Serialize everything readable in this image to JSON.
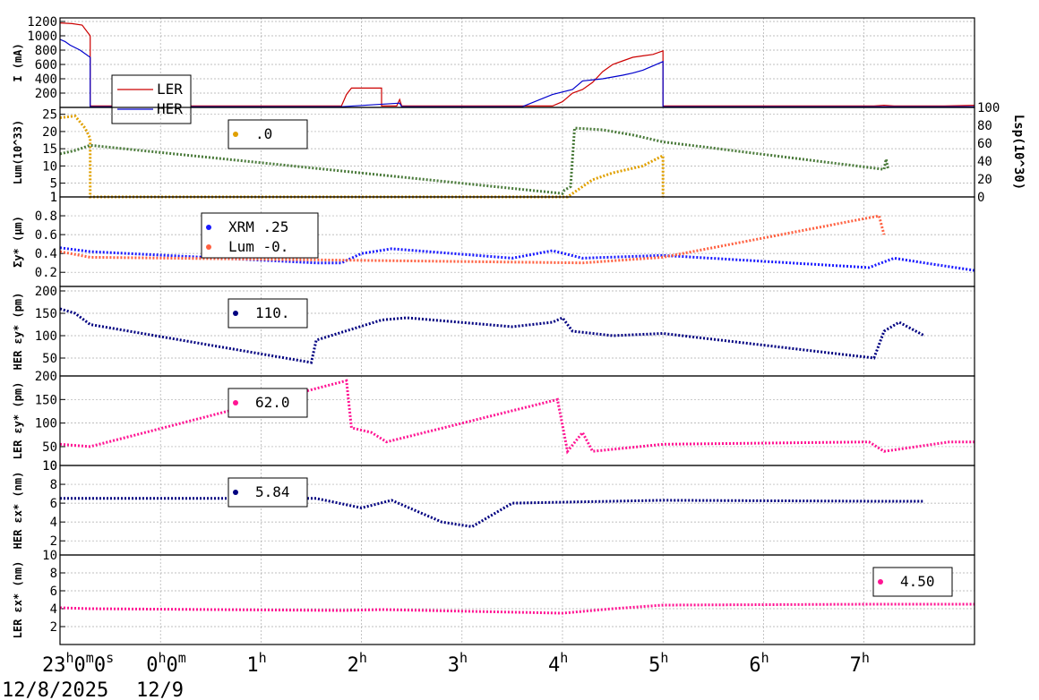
{
  "chart_data": {
    "type": "line",
    "x_axis": {
      "ticks": [
        {
          "t": 0,
          "major": "23",
          "sup1": "h",
          "mid1": "0",
          "sup2": "m",
          "mid2": "0",
          "sup3": "s"
        },
        {
          "t": 1,
          "major": "0",
          "sup1": "h",
          "mid1": "0",
          "sup2": "m"
        },
        {
          "t": 2,
          "major": "1",
          "sup1": "h"
        },
        {
          "t": 3,
          "major": "2",
          "sup1": "h"
        },
        {
          "t": 4,
          "major": "3",
          "sup1": "h"
        },
        {
          "t": 5,
          "major": "4",
          "sup1": "h"
        },
        {
          "t": 6,
          "major": "5",
          "sup1": "h"
        },
        {
          "t": 7,
          "major": "6",
          "sup1": "h"
        },
        {
          "t": 8,
          "major": "7",
          "sup1": "h"
        }
      ],
      "date_labels": [
        "12/8/2025",
        "12/9"
      ],
      "range_hours": [
        0,
        9.1
      ]
    },
    "panels": [
      {
        "id": "current",
        "ylabel": "I (mA)",
        "yticks": [
          "200",
          "400",
          "600",
          "800",
          "1000",
          "1200"
        ],
        "ylim": [
          0,
          1250
        ],
        "legend": [
          {
            "label": "LER",
            "color": "#cc0000"
          },
          {
            "label": "HER",
            "color": "#0000cc"
          }
        ],
        "series": [
          {
            "name": "LER",
            "color": "#cc0000",
            "points": [
              [
                0,
                1180
              ],
              [
                0.12,
                1170
              ],
              [
                0.22,
                1150
              ],
              [
                0.3,
                1000
              ],
              [
                0.3,
                20
              ],
              [
                2.8,
                20
              ],
              [
                2.85,
                180
              ],
              [
                2.9,
                270
              ],
              [
                3.2,
                270
              ],
              [
                3.2,
                20
              ],
              [
                3.35,
                20
              ],
              [
                3.38,
                110
              ],
              [
                3.4,
                20
              ],
              [
                4.9,
                20
              ],
              [
                5.0,
                80
              ],
              [
                5.1,
                200
              ],
              [
                5.2,
                250
              ],
              [
                5.3,
                350
              ],
              [
                5.4,
                500
              ],
              [
                5.5,
                600
              ],
              [
                5.6,
                650
              ],
              [
                5.7,
                700
              ],
              [
                5.8,
                720
              ],
              [
                5.9,
                740
              ],
              [
                6.0,
                790
              ],
              [
                6.0,
                20
              ],
              [
                8.1,
                20
              ],
              [
                8.2,
                30
              ],
              [
                8.3,
                20
              ],
              [
                8.8,
                20
              ],
              [
                9.1,
                30
              ]
            ]
          },
          {
            "name": "HER",
            "color": "#0000cc",
            "points": [
              [
                0,
                950
              ],
              [
                0.05,
                920
              ],
              [
                0.1,
                870
              ],
              [
                0.2,
                800
              ],
              [
                0.3,
                700
              ],
              [
                0.3,
                10
              ],
              [
                2.8,
                10
              ],
              [
                3.38,
                60
              ],
              [
                3.4,
                10
              ],
              [
                4.6,
                10
              ],
              [
                4.9,
                180
              ],
              [
                5.1,
                250
              ],
              [
                5.2,
                370
              ],
              [
                5.4,
                400
              ],
              [
                5.6,
                450
              ],
              [
                5.7,
                480
              ],
              [
                5.8,
                520
              ],
              [
                6.0,
                640
              ],
              [
                6.0,
                10
              ],
              [
                9.1,
                10
              ]
            ]
          }
        ]
      },
      {
        "id": "luminosity",
        "ylabel": "Lum(10^33)",
        "yticks": [
          "1",
          "5",
          "10",
          "15",
          "20",
          "25"
        ],
        "ylim": [
          1,
          27
        ],
        "right_axis": {
          "label": "Lsp(10^30)",
          "ticks": [
            "0",
            "20",
            "40",
            "60",
            "80",
            "100"
          ]
        },
        "legend": [
          {
            "label": ".0",
            "color": "#e0a000"
          }
        ],
        "series": [
          {
            "name": ".0",
            "color": "#e0a000",
            "points": [
              [
                0,
                24
              ],
              [
                0.15,
                24.5
              ],
              [
                0.25,
                21
              ],
              [
                0.3,
                18
              ],
              [
                0.3,
                1
              ],
              [
                5.05,
                1
              ],
              [
                5.15,
                3
              ],
              [
                5.3,
                6
              ],
              [
                5.5,
                8
              ],
              [
                5.8,
                10
              ],
              [
                6.0,
                13
              ],
              [
                6.0,
                1
              ]
            ]
          },
          {
            "name": "Lsp",
            "color": "#4a7a3a",
            "points": [
              [
                0,
                13.5
              ],
              [
                0.15,
                14.5
              ],
              [
                0.3,
                16
              ],
              [
                5.0,
                2
              ],
              [
                5.02,
                3
              ],
              [
                5.08,
                4
              ],
              [
                5.12,
                21
              ],
              [
                5.4,
                20.5
              ],
              [
                5.7,
                19
              ],
              [
                6.0,
                17
              ],
              [
                8.2,
                9
              ],
              [
                8.22,
                12
              ],
              [
                8.24,
                9
              ]
            ]
          }
        ]
      },
      {
        "id": "sigma",
        "ylabel": "Σy* (µm)",
        "yticks": [
          "0.2",
          "0.4",
          "0.6",
          "0.8",
          "1"
        ],
        "ylim": [
          0.05,
          1.0
        ],
        "legend": [
          {
            "label": "XRM  .25",
            "color": "#1a1aff"
          },
          {
            "label": "Lum -0.",
            "color": "#ff6040"
          }
        ],
        "series": [
          {
            "name": "XRM",
            "color": "#1a1aff",
            "points": [
              [
                0,
                0.46
              ],
              [
                0.3,
                0.42
              ],
              [
                2.55,
                0.3
              ],
              [
                2.8,
                0.3
              ],
              [
                3.0,
                0.4
              ],
              [
                3.3,
                0.45
              ],
              [
                4.5,
                0.35
              ],
              [
                4.9,
                0.43
              ],
              [
                5.2,
                0.35
              ],
              [
                6.0,
                0.38
              ],
              [
                8.05,
                0.25
              ],
              [
                8.3,
                0.35
              ],
              [
                8.6,
                0.3
              ],
              [
                9.1,
                0.22
              ]
            ]
          },
          {
            "name": "Lum",
            "color": "#ff6040",
            "points": [
              [
                0,
                0.42
              ],
              [
                0.3,
                0.36
              ],
              [
                5.2,
                0.3
              ],
              [
                6.0,
                0.36
              ],
              [
                8.15,
                0.8
              ],
              [
                8.2,
                0.6
              ]
            ]
          }
        ]
      },
      {
        "id": "her-eps-y",
        "ylabel": "HER εy* (pm)",
        "yticks": [
          "50",
          "100",
          "150",
          "200"
        ],
        "ylim": [
          10,
          210
        ],
        "legend": [
          {
            "label": "110.",
            "color": "#000080"
          }
        ],
        "series": [
          {
            "name": "110.",
            "color": "#000080",
            "points": [
              [
                0,
                160
              ],
              [
                0.15,
                150
              ],
              [
                0.3,
                125
              ],
              [
                2.5,
                40
              ],
              [
                2.55,
                90
              ],
              [
                3.2,
                135
              ],
              [
                3.45,
                140
              ],
              [
                4.5,
                120
              ],
              [
                4.9,
                130
              ],
              [
                5.0,
                140
              ],
              [
                5.1,
                110
              ],
              [
                5.5,
                100
              ],
              [
                6.0,
                105
              ],
              [
                8.1,
                50
              ],
              [
                8.2,
                110
              ],
              [
                8.35,
                130
              ],
              [
                8.6,
                100
              ]
            ]
          }
        ]
      },
      {
        "id": "ler-eps-y",
        "ylabel": "LER εy* (pm)",
        "yticks": [
          "10",
          "50",
          "100",
          "150",
          "200"
        ],
        "ylim": [
          10,
          200
        ],
        "legend": [
          {
            "label": "62.0",
            "color": "#ff1493"
          }
        ],
        "series": [
          {
            "name": "62.0",
            "color": "#ff1493",
            "points": [
              [
                0,
                55
              ],
              [
                0.3,
                50
              ],
              [
                2.85,
                190
              ],
              [
                2.9,
                90
              ],
              [
                3.1,
                80
              ],
              [
                3.25,
                60
              ],
              [
                4.95,
                150
              ],
              [
                5.05,
                40
              ],
              [
                5.2,
                80
              ],
              [
                5.3,
                40
              ],
              [
                6.0,
                55
              ],
              [
                8.05,
                60
              ],
              [
                8.2,
                40
              ],
              [
                8.85,
                60
              ],
              [
                9.1,
                60
              ]
            ]
          }
        ]
      },
      {
        "id": "her-eps-x",
        "ylabel": "HER εx* (nm)",
        "yticks": [
          "2",
          "4",
          "6",
          "8",
          "10"
        ],
        "ylim": [
          0.5,
          10
        ],
        "legend": [
          {
            "label": "5.84",
            "color": "#000080"
          }
        ],
        "series": [
          {
            "name": "5.84",
            "color": "#000080",
            "points": [
              [
                0,
                6.5
              ],
              [
                0.3,
                6.5
              ],
              [
                2.55,
                6.5
              ],
              [
                3.0,
                5.5
              ],
              [
                3.3,
                6.3
              ],
              [
                3.8,
                4
              ],
              [
                4.1,
                3.5
              ],
              [
                4.5,
                6
              ],
              [
                6.0,
                6.3
              ],
              [
                8.15,
                6.2
              ],
              [
                8.6,
                6.2
              ]
            ]
          }
        ]
      },
      {
        "id": "ler-eps-x",
        "ylabel": "LER εx* (nm)",
        "yticks": [
          "2",
          "4",
          "6",
          "8",
          "10"
        ],
        "ylim": [
          0,
          10
        ],
        "legend": [
          {
            "label": "4.50",
            "color": "#ff1493"
          }
        ],
        "series": [
          {
            "name": "4.50",
            "color": "#ff1493",
            "points": [
              [
                0,
                4.1
              ],
              [
                0.3,
                4.0
              ],
              [
                2.8,
                3.8
              ],
              [
                3.2,
                3.9
              ],
              [
                5.0,
                3.5
              ],
              [
                5.5,
                4.0
              ],
              [
                6.0,
                4.4
              ],
              [
                8.05,
                4.5
              ],
              [
                8.9,
                4.5
              ],
              [
                9.1,
                4.5
              ]
            ]
          }
        ]
      }
    ]
  }
}
